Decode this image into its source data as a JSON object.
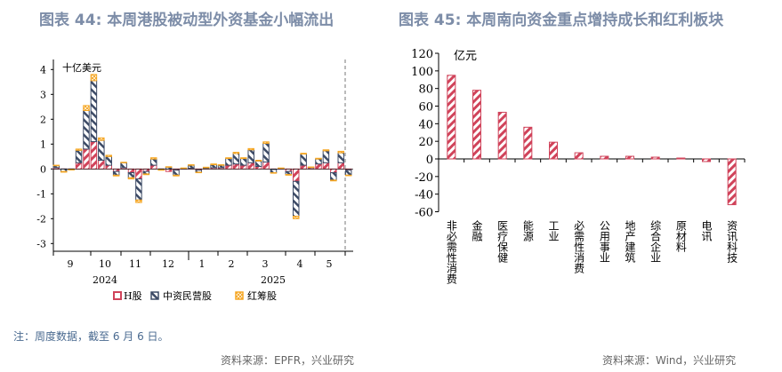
{
  "left": {
    "title": "图表 44: 本周港股被动型外资基金小幅流出",
    "source": "资料来源：EPFR，兴业研究"
  },
  "right": {
    "title": "图表 45: 本周南向资金重点增持成长和红利板块",
    "source": "资料来源：Wind，兴业研究"
  },
  "note": "注：周度数据，截至 6 月 6 日。",
  "colors": {
    "red": "#d0435a",
    "navy": "#3d4b66",
    "orange": "#f5a623",
    "title": "#7d8da8"
  },
  "chart_data": [
    {
      "type": "bar",
      "stacked": true,
      "unit_label": "十亿美元",
      "ylim": [
        -3.3,
        4.4
      ],
      "yticks": [
        4,
        3,
        2,
        1,
        0,
        -1,
        -2,
        -3
      ],
      "month_labels": [
        "9",
        "10",
        "11",
        "12",
        "1",
        "2",
        "3",
        "4",
        "5"
      ],
      "year_labels": [
        "2024",
        "2025"
      ],
      "legend_position": "bottom",
      "series": [
        {
          "name": "H股",
          "values": [
            0.05,
            0,
            -0.02,
            0.25,
            0.8,
            1.1,
            0.35,
            0.15,
            -0.1,
            0.05,
            -0.15,
            -0.4,
            -0.1,
            0.15,
            -0.03,
            -0.1,
            -0.05,
            0.02,
            0.03,
            -0.05,
            0.03,
            0.05,
            0.05,
            0.15,
            0.2,
            0.15,
            0.25,
            0.1,
            0.28,
            -0.02,
            0.02,
            -0.1,
            -0.5,
            0.15,
            0.05,
            0.2,
            0.25,
            -0.15,
            0.25,
            -0.05
          ]
        },
        {
          "name": "中资民营股",
          "values": [
            0.08,
            -0.1,
            0,
            0.5,
            1.55,
            2.45,
            0.8,
            0.35,
            -0.15,
            0.2,
            -0.2,
            -0.85,
            -0.1,
            0.25,
            0,
            0.07,
            -0.2,
            0.01,
            0.12,
            -0.08,
            0.02,
            0.12,
            0.1,
            0.27,
            0.42,
            0.27,
            0.52,
            0.22,
            0.75,
            -0.13,
            0.01,
            -0.12,
            -1.4,
            0.45,
            0.02,
            0.2,
            0.48,
            -0.3,
            0.4,
            -0.2
          ]
        },
        {
          "name": "红筹股",
          "values": [
            0.02,
            -0.03,
            -0.01,
            0.05,
            0.2,
            0.25,
            0.1,
            0.05,
            -0.03,
            0.02,
            -0.05,
            -0.1,
            -0.03,
            0.05,
            -0.02,
            0.02,
            -0.03,
            0.01,
            0.02,
            -0.02,
            0.02,
            0.03,
            0.02,
            0.03,
            0.05,
            0.03,
            0.05,
            0.03,
            0.06,
            -0.02,
            0.01,
            -0.03,
            -0.1,
            0.03,
            0.01,
            0.03,
            0.04,
            -0.03,
            0.06,
            -0.02
          ]
        }
      ]
    },
    {
      "type": "bar",
      "unit_label": "亿元",
      "ylim": [
        -60,
        120
      ],
      "yticks": [
        120,
        100,
        80,
        60,
        40,
        20,
        0,
        -20,
        -40,
        -60
      ],
      "categories": [
        "非必需性消费",
        "金融",
        "医疗保健",
        "能源",
        "工业",
        "必需性消费",
        "公用事业",
        "地产建筑",
        "综合企业",
        "原材料",
        "电讯",
        "资讯科技"
      ],
      "values": [
        95,
        78,
        53,
        36,
        19,
        7,
        3,
        3,
        2,
        1,
        -3,
        -52
      ]
    }
  ]
}
